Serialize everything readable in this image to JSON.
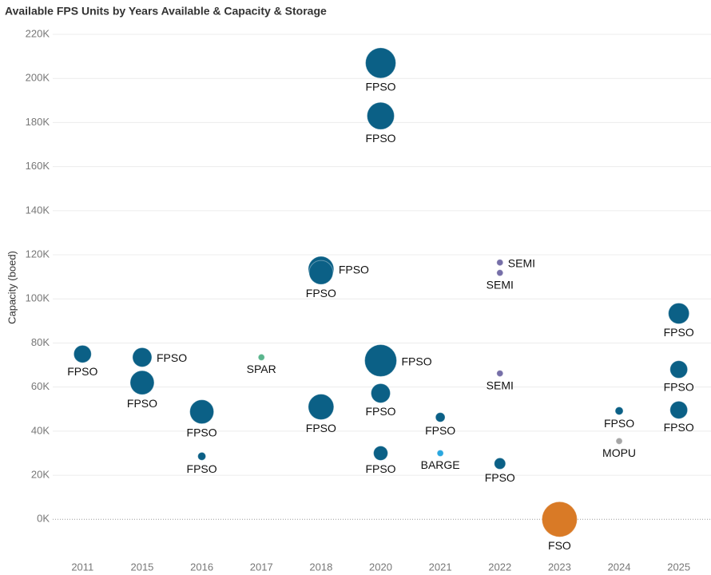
{
  "chart_data": {
    "type": "bubble",
    "title": "Available FPS Units by Years Available & Capacity & Storage",
    "y_label": "Capacity (boed)",
    "categories": [
      "2011",
      "2015",
      "2016",
      "2017",
      "2018",
      "2020",
      "2021",
      "2022",
      "2023",
      "2024",
      "2025"
    ],
    "ylim": [
      -18000,
      220000
    ],
    "yticks": [
      {
        "value": 0,
        "label": "0K"
      },
      {
        "value": 20000,
        "label": "20K"
      },
      {
        "value": 40000,
        "label": "40K"
      },
      {
        "value": 60000,
        "label": "60K"
      },
      {
        "value": 80000,
        "label": "80K"
      },
      {
        "value": 100000,
        "label": "100K"
      },
      {
        "value": 120000,
        "label": "120K"
      },
      {
        "value": 140000,
        "label": "140K"
      },
      {
        "value": 160000,
        "label": "160K"
      },
      {
        "value": 180000,
        "label": "180K"
      },
      {
        "value": 200000,
        "label": "200K"
      },
      {
        "value": 220000,
        "label": "220K"
      }
    ],
    "grid": true,
    "points": [
      {
        "category": "2011",
        "y": 75000,
        "size": 480,
        "label": "FPSO",
        "color": "#0b6086"
      },
      {
        "category": "2015",
        "y": 73500,
        "size": 580,
        "label": "FPSO",
        "color": "#0b6086"
      },
      {
        "category": "2015",
        "y": 62000,
        "size": 900,
        "label": "FPSO",
        "color": "#0b6086"
      },
      {
        "category": "2016",
        "y": 48800,
        "size": 900,
        "label": "FPSO",
        "color": "#0b6086"
      },
      {
        "category": "2016",
        "y": 28600,
        "size": 100,
        "label": "FPSO",
        "color": "#0b6086"
      },
      {
        "category": "2017",
        "y": 73500,
        "size": 64,
        "label": "SPAR",
        "color": "#5ab58d"
      },
      {
        "category": "2018",
        "y": 113500,
        "size": 1020,
        "label": "FPSO",
        "color": "#0b6086"
      },
      {
        "category": "2018",
        "y": 112000,
        "size": 900,
        "label": "FPSO",
        "color": "#0b6086"
      },
      {
        "category": "2018",
        "y": 51000,
        "size": 1020,
        "label": "FPSO",
        "color": "#0b6086"
      },
      {
        "category": "2020",
        "y": 207000,
        "size": 1440,
        "label": "FPSO",
        "color": "#0b6086"
      },
      {
        "category": "2020",
        "y": 183000,
        "size": 1160,
        "label": "FPSO",
        "color": "#0b6086"
      },
      {
        "category": "2020",
        "y": 72000,
        "size": 1600,
        "label": "FPSO",
        "color": "#0b6086"
      },
      {
        "category": "2020",
        "y": 57200,
        "size": 580,
        "label": "FPSO",
        "color": "#0b6086"
      },
      {
        "category": "2020",
        "y": 30000,
        "size": 320,
        "label": "FPSO",
        "color": "#0b6086"
      },
      {
        "category": "2021",
        "y": 46300,
        "size": 140,
        "label": "FPSO",
        "color": "#0b6086"
      },
      {
        "category": "2021",
        "y": 30000,
        "size": 64,
        "label": "BARGE",
        "color": "#2aa7df"
      },
      {
        "category": "2022",
        "y": 116500,
        "size": 64,
        "label": "SEMI",
        "color": "#766fa8"
      },
      {
        "category": "2022",
        "y": 111800,
        "size": 64,
        "label": "SEMI",
        "color": "#766fa8"
      },
      {
        "category": "2022",
        "y": 66200,
        "size": 64,
        "label": "SEMI",
        "color": "#766fa8"
      },
      {
        "category": "2022",
        "y": 25300,
        "size": 200,
        "label": "FPSO",
        "color": "#0b6086"
      },
      {
        "category": "2023",
        "y": 0,
        "size": 1940,
        "label": "FSO",
        "color": "#d97a26"
      },
      {
        "category": "2024",
        "y": 49200,
        "size": 100,
        "label": "FPSO",
        "color": "#0b6086"
      },
      {
        "category": "2024",
        "y": 35500,
        "size": 64,
        "label": "MOPU",
        "color": "#a6a6a6"
      },
      {
        "category": "2025",
        "y": 93400,
        "size": 680,
        "label": "FPSO",
        "color": "#0b6086"
      },
      {
        "category": "2025",
        "y": 68000,
        "size": 480,
        "label": "FPSO",
        "color": "#0b6086"
      },
      {
        "category": "2025",
        "y": 49600,
        "size": 480,
        "label": "FPSO",
        "color": "#0b6086"
      }
    ]
  }
}
